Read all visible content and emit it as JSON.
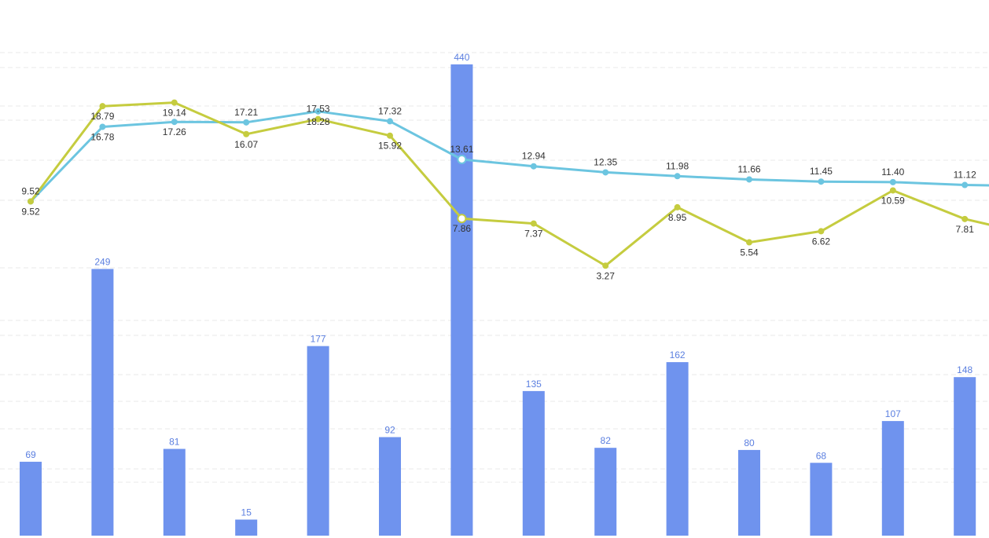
{
  "chart_data": {
    "type": "bar",
    "colors": {
      "bars": "#6f93ee",
      "series_a": "#6cc5e0",
      "series_b": "#c5cc3f",
      "grid": "#e8e8e8"
    },
    "grid": true,
    "bars": {
      "values": [
        69,
        249,
        81,
        15,
        177,
        92,
        440,
        135,
        82,
        162,
        80,
        68,
        107,
        148
      ],
      "ylim": [
        0,
        440
      ]
    },
    "line_ylim": [
      -23,
      24
    ],
    "series": [
      {
        "type": "line",
        "color": "#6cc5e0",
        "values": [
          9.52,
          16.78,
          17.26,
          17.21,
          18.28,
          17.32,
          13.61,
          12.94,
          12.35,
          11.98,
          11.66,
          11.45,
          11.4,
          11.12
        ],
        "labels": [
          "9.52",
          "16.78",
          "17.26",
          "17.21",
          "18.28",
          "17.32",
          "13.61",
          "12.94",
          "12.35",
          "11.98",
          "11.66",
          "11.45",
          "11.40",
          "11.12"
        ],
        "label_pos": [
          "below",
          "below",
          "below",
          "above",
          "below",
          "above",
          "above",
          "above",
          "above",
          "above",
          "above",
          "above",
          "above",
          "above"
        ]
      },
      {
        "type": "line",
        "color": "#c5cc3f",
        "values": [
          9.52,
          18.79,
          19.14,
          16.07,
          17.53,
          15.92,
          7.86,
          7.37,
          3.27,
          8.95,
          5.54,
          6.62,
          10.59,
          7.81
        ],
        "labels": [
          "9.52",
          "18.79",
          "19.14",
          "16.07",
          "17.53",
          "15.92",
          "7.86",
          "7.37",
          "3.27",
          "8.95",
          "5.54",
          "6.62",
          "10.59",
          "7.81"
        ],
        "label_pos": [
          "above",
          "below",
          "below",
          "below",
          "above",
          "below",
          "below",
          "below",
          "below",
          "below",
          "below",
          "below",
          "below",
          "below"
        ]
      }
    ]
  }
}
